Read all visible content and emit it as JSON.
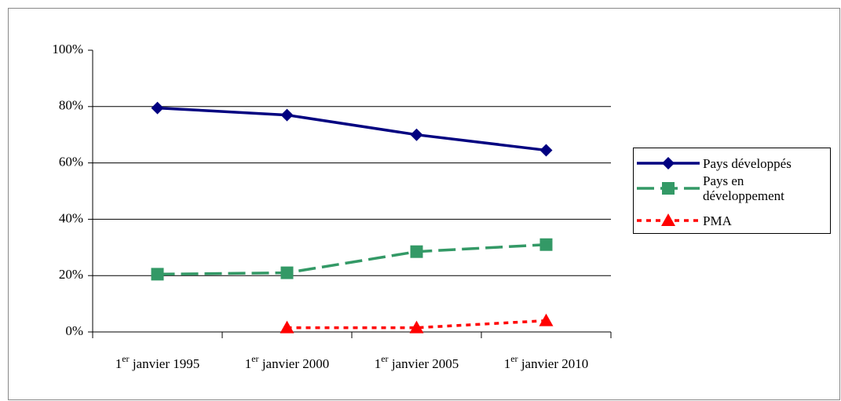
{
  "chart_data": {
    "type": "line",
    "categories": [
      "1er janvier 1995",
      "1er janvier 2000",
      "1er janvier 2005",
      "1er janvier 2010"
    ],
    "series": [
      {
        "name": "Pays développés",
        "color": "#000080",
        "marker": "diamond",
        "dash": "solid",
        "values": [
          79.5,
          77,
          70,
          64.5
        ]
      },
      {
        "name": "Pays en développement",
        "color": "#339966",
        "marker": "square",
        "dash": "dashed",
        "values": [
          20.5,
          21,
          28.5,
          31
        ]
      },
      {
        "name": "PMA",
        "color": "#ff0000",
        "marker": "triangle",
        "dash": "dotted",
        "values": [
          null,
          1.5,
          1.5,
          4
        ]
      }
    ],
    "ylim": [
      0,
      100
    ],
    "yticks": [
      {
        "value": 0,
        "label": "0%"
      },
      {
        "value": 20,
        "label": "20%"
      },
      {
        "value": 40,
        "label": "40%"
      },
      {
        "value": 60,
        "label": "60%"
      },
      {
        "value": 80,
        "label": "80%"
      },
      {
        "value": 100,
        "label": "100%"
      }
    ],
    "grid": true,
    "legend": "right"
  }
}
